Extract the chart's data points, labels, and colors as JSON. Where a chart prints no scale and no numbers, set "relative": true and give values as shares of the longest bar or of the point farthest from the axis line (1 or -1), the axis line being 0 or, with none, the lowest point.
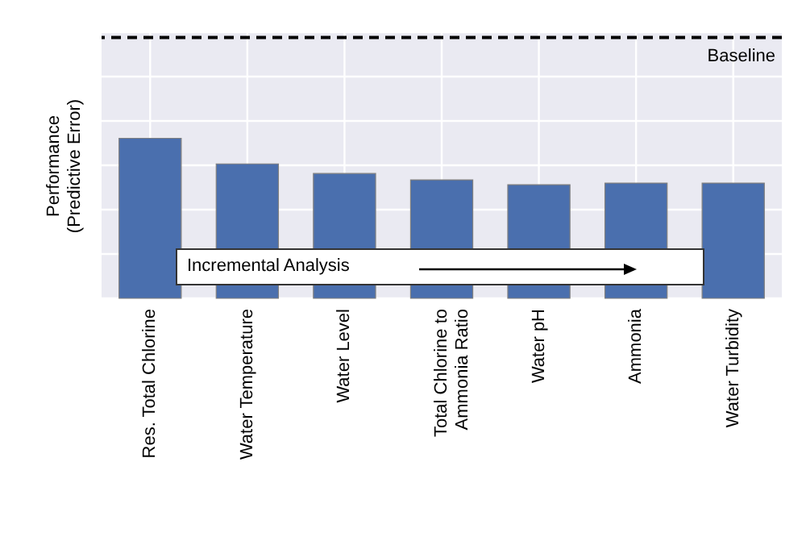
{
  "chart_data": {
    "type": "bar",
    "relative": true,
    "ylabel": "Performance\n(Predictive Error)",
    "categories": [
      "Res. Total Chlorine",
      "Water Temperature",
      "Water Level",
      "Total Chlorine to\nAmmonia Ratio",
      "Water pH",
      "Ammonia",
      "Water Turbidity"
    ],
    "values": [
      1,
      0.84,
      0.78,
      0.74,
      0.71,
      0.72,
      0.72
    ],
    "color": "#4a6fae",
    "ref_lines": [
      {
        "axis": "y",
        "value": 1.63,
        "label": "Baseline",
        "color": "#000000",
        "line_style": "dashed"
      }
    ],
    "annotations": [
      "Incremental Analysis"
    ],
    "grid": true
  }
}
